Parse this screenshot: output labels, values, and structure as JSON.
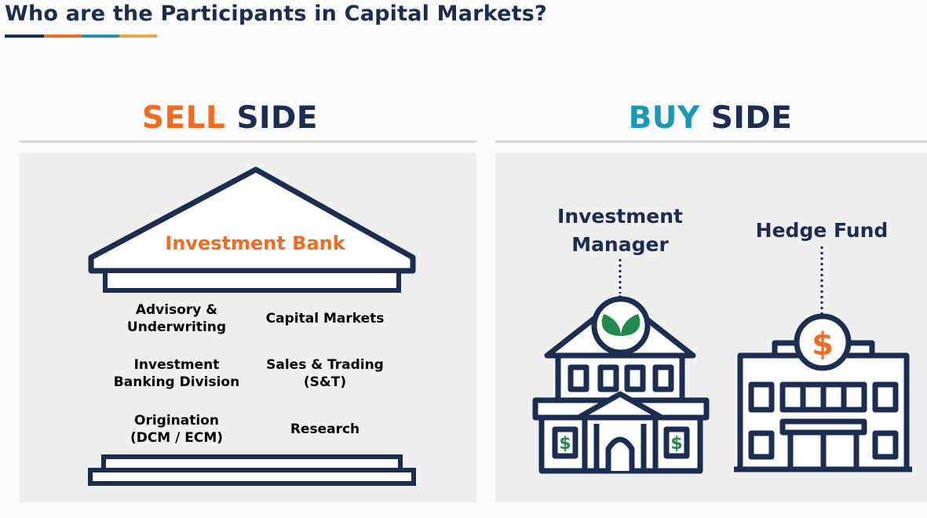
{
  "title": "Who are the Participants in Capital Markets?",
  "title_bar_colors": [
    "#1c2d52",
    "#f26b21",
    "#1d97b3",
    "#f4a23a"
  ],
  "sell_side": {
    "heading_accent": "SELL",
    "heading_rest": "SIDE",
    "bank": {
      "label": "Investment Bank",
      "cells": [
        {
          "label": "Advisory &\nUnderwriting",
          "style": "dark"
        },
        {
          "label": "Capital Markets",
          "style": "dark"
        },
        {
          "label": "Investment\nBanking Division",
          "style": "light"
        },
        {
          "label": "Sales & Trading\n(S&T)",
          "style": "light"
        },
        {
          "label": "Origination\n(DCM / ECM)",
          "style": "light"
        },
        {
          "label": "Research",
          "style": "light"
        }
      ]
    }
  },
  "buy_side": {
    "heading_accent": "BUY",
    "heading_rest": "SIDE",
    "investment_manager": {
      "label": "Investment\nManager",
      "icon": "leaf-icon"
    },
    "hedge_fund": {
      "label": "Hedge Fund",
      "icon": "dollar-icon"
    }
  },
  "colors": {
    "navy": "#1c2d52",
    "orange": "#f26b21",
    "teal": "#1d97b3",
    "green": "#1f8a4c"
  }
}
